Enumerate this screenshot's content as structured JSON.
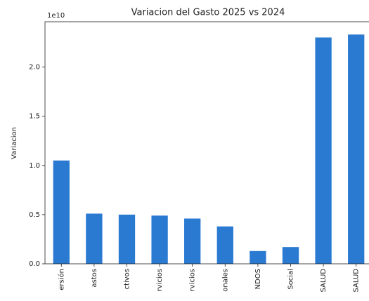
{
  "chart_data": {
    "type": "bar",
    "title": "Variacion del Gasto 2025 vs 2024",
    "y_label": "Variacion",
    "y_offset_label": "1e10",
    "categories": [
      "ersión",
      "astos",
      "ctivos",
      "rvicios",
      "rvicios",
      "onales",
      "NDOS",
      "Social",
      "SALUD",
      "SALUD"
    ],
    "values": [
      1.05,
      0.51,
      0.5,
      0.49,
      0.46,
      0.38,
      0.13,
      0.17,
      2.3,
      2.33
    ],
    "color": "#2a7ad2",
    "ylim": [
      0,
      2.46
    ],
    "yticks": [
      {
        "value": 0,
        "label": "0.0"
      },
      0.5,
      {
        "value": 1,
        "label": "1.0"
      },
      1.5,
      {
        "value": 2,
        "label": "2.0"
      }
    ],
    "grid": false
  }
}
